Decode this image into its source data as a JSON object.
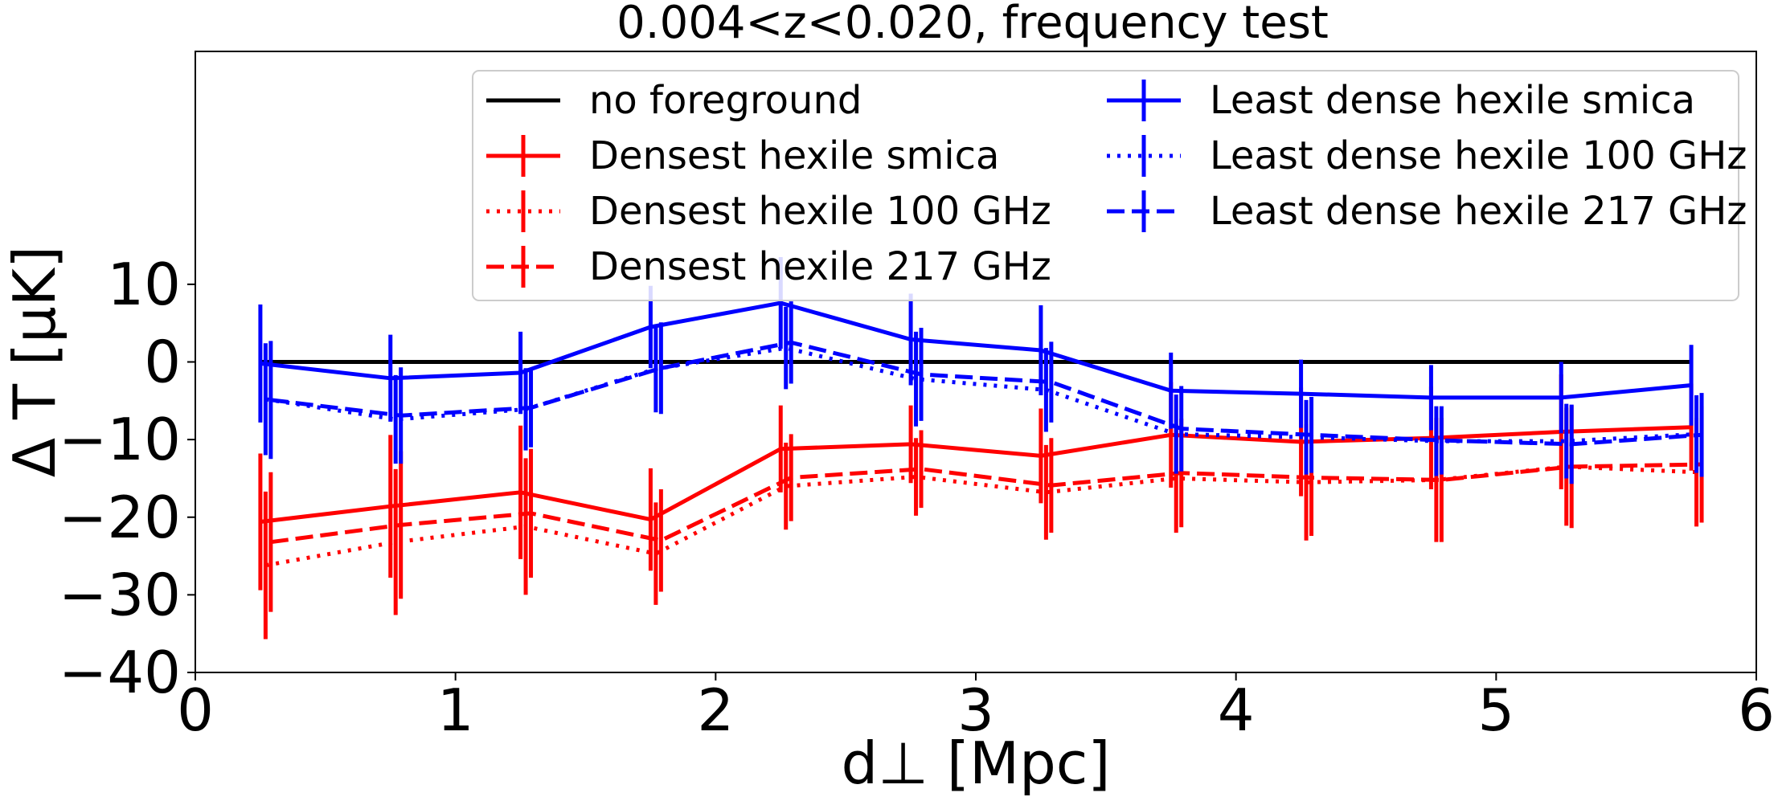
{
  "chart_data": {
    "type": "line",
    "title": "0.004<z<0.020, frequency test",
    "xlabel": "d⊥ [Mpc]",
    "ylabel": "Δ T [μK]",
    "xlim": [
      0,
      6
    ],
    "ylim": [
      -40,
      40
    ],
    "xticks": [
      "0",
      "1",
      "2",
      "3",
      "4",
      "5",
      "6"
    ],
    "yticks": [
      "−40",
      "−30",
      "−20",
      "−10",
      "0",
      "10"
    ],
    "grid": false,
    "legend_placement": "upper right, two columns",
    "reference_line": {
      "name": "no foreground",
      "y": 0,
      "color": "#000000"
    },
    "series": [
      {
        "name": "Densest hexile smica",
        "color": "#ff0000",
        "style": "solid",
        "x": [
          0.25,
          0.75,
          1.25,
          1.75,
          2.25,
          2.75,
          3.25,
          3.75,
          4.25,
          4.75,
          5.25,
          5.75
        ],
        "y": [
          -20.6,
          -18.6,
          -16.8,
          -20.3,
          -11.2,
          -10.6,
          -12.1,
          -9.4,
          -10.3,
          -9.8,
          -9.0,
          -8.4
        ],
        "err": [
          8.8,
          9.2,
          8.6,
          6.6,
          5.6,
          5.0,
          6.1,
          6.8,
          7.0,
          6.6,
          7.4,
          5.6
        ]
      },
      {
        "name": "Densest hexile 100 GHz",
        "color": "#ff0000",
        "style": "dotted",
        "x": [
          0.27,
          0.77,
          1.27,
          1.77,
          2.27,
          2.77,
          3.27,
          3.77,
          4.27,
          4.77,
          5.27,
          5.77
        ],
        "y": [
          -26.2,
          -23.2,
          -21.2,
          -24.7,
          -16.0,
          -14.8,
          -16.8,
          -15.0,
          -15.5,
          -15.2,
          -13.5,
          -14.2
        ],
        "err": [
          9.5,
          9.4,
          8.8,
          6.6,
          5.6,
          5.0,
          6.1,
          7.0,
          7.5,
          8.0,
          7.6,
          7.0
        ]
      },
      {
        "name": "Densest hexile 217 GHz",
        "color": "#ff0000",
        "style": "dashed",
        "x": [
          0.29,
          0.79,
          1.29,
          1.79,
          2.29,
          2.79,
          3.29,
          3.79,
          4.29,
          4.79,
          5.29,
          5.79
        ],
        "y": [
          -23.2,
          -21.0,
          -19.5,
          -23.0,
          -14.9,
          -13.8,
          -15.9,
          -14.3,
          -14.9,
          -15.2,
          -13.5,
          -13.2
        ],
        "err": [
          9.0,
          9.5,
          8.3,
          6.6,
          5.6,
          5.0,
          6.1,
          7.0,
          7.5,
          8.0,
          7.9,
          7.5
        ]
      },
      {
        "name": "Least dense hexile smica",
        "color": "#0000ff",
        "style": "solid",
        "x": [
          0.25,
          0.75,
          1.25,
          1.75,
          2.25,
          2.75,
          3.25,
          3.75,
          4.25,
          4.75,
          5.25,
          5.75
        ],
        "y": [
          -0.2,
          -2.1,
          -1.4,
          4.5,
          7.6,
          2.9,
          1.5,
          -3.7,
          -4.1,
          -4.6,
          -4.6,
          -3.0
        ],
        "err": [
          7.6,
          5.6,
          5.3,
          5.3,
          5.9,
          5.9,
          5.8,
          4.9,
          4.4,
          4.2,
          4.6,
          5.2
        ]
      },
      {
        "name": "Least dense hexile 100 GHz",
        "color": "#0000ff",
        "style": "dotted",
        "x": [
          0.27,
          0.77,
          1.27,
          1.77,
          2.27,
          2.77,
          3.27,
          3.77,
          4.27,
          4.77,
          5.27,
          5.77
        ],
        "y": [
          -4.8,
          -7.4,
          -6.1,
          -0.9,
          1.8,
          -2.2,
          -3.6,
          -9.3,
          -9.7,
          -10.2,
          -10.2,
          -9.3
        ],
        "err": [
          7.2,
          5.7,
          5.3,
          5.6,
          5.3,
          6.1,
          5.4,
          5.1,
          4.8,
          4.5,
          4.8,
          5.0
        ]
      },
      {
        "name": "Least dense hexile 217 GHz",
        "color": "#0000ff",
        "style": "dashed",
        "x": [
          0.29,
          0.79,
          1.29,
          1.79,
          2.29,
          2.79,
          3.29,
          3.79,
          4.29,
          4.79,
          5.29,
          5.79
        ],
        "y": [
          -4.9,
          -6.9,
          -5.9,
          -0.8,
          2.5,
          -1.6,
          -2.6,
          -8.6,
          -9.4,
          -10.1,
          -10.6,
          -9.4
        ],
        "err": [
          7.6,
          6.2,
          5.1,
          5.9,
          5.3,
          6.0,
          5.2,
          5.5,
          4.9,
          4.4,
          5.1,
          5.4
        ]
      }
    ]
  }
}
